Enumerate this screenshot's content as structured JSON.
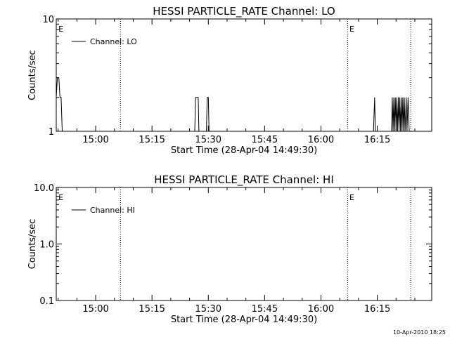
{
  "chart_data": [
    {
      "type": "line",
      "title": "HESSI PARTICLE_RATE Channel: LO",
      "xlabel": "Start Time (28-Apr-04 14:49:30)",
      "ylabel": "Counts/sec",
      "y_scale": "log",
      "ylim": [
        1,
        10
      ],
      "y_ticks": [
        1,
        10
      ],
      "y_tick_labels": [
        "1",
        "10"
      ],
      "x_unit": "minutes after 14:49:30",
      "xlim": [
        0,
        100
      ],
      "x_ticks": [
        10.5,
        25.5,
        40.5,
        55.5,
        70.5,
        85.5
      ],
      "x_tick_labels": [
        "15:00",
        "15:15",
        "15:30",
        "15:45",
        "16:00",
        "16:15"
      ],
      "legend": {
        "entries": [
          "Channel: LO"
        ],
        "placement": "top-left"
      },
      "grid": false,
      "vlines": [
        17.1,
        77.6,
        94.4
      ],
      "annotations": [
        {
          "text": "E",
          "x": 0.4
        },
        {
          "text": "E",
          "x": 77.9
        }
      ],
      "series": [
        {
          "name": "Channel: LO",
          "points": [
            [
              0,
              2
            ],
            [
              0.3,
              3
            ],
            [
              0.7,
              3
            ],
            [
              1.0,
              2
            ],
            [
              1.3,
              2
            ],
            [
              1.6,
              1
            ],
            [
              36.9,
              1
            ],
            [
              37.1,
              2
            ],
            [
              37.8,
              2
            ],
            [
              38.0,
              1
            ],
            [
              40.0,
              1
            ],
            [
              40.2,
              2
            ],
            [
              40.5,
              2
            ],
            [
              40.7,
              1
            ],
            [
              84.5,
              1
            ],
            [
              84.8,
              2
            ],
            [
              85.0,
              1
            ],
            [
              89.3,
              1
            ],
            [
              89.5,
              2
            ],
            [
              89.7,
              1
            ],
            [
              89.9,
              2
            ],
            [
              90.1,
              1
            ],
            [
              90.3,
              2
            ],
            [
              90.5,
              1
            ],
            [
              90.7,
              2
            ],
            [
              90.9,
              1
            ],
            [
              91.1,
              2
            ],
            [
              91.3,
              1
            ],
            [
              91.5,
              2
            ],
            [
              91.7,
              1
            ],
            [
              91.9,
              2
            ],
            [
              92.1,
              1
            ],
            [
              92.3,
              2
            ],
            [
              92.5,
              1
            ],
            [
              92.7,
              2
            ],
            [
              92.9,
              1
            ],
            [
              93.2,
              2
            ],
            [
              93.4,
              1
            ],
            [
              93.7,
              2
            ],
            [
              94.0,
              1
            ]
          ]
        }
      ]
    },
    {
      "type": "line",
      "title": "HESSI PARTICLE_RATE Channel: HI",
      "xlabel": "Start Time (28-Apr-04 14:49:30)",
      "ylabel": "Counts/sec",
      "y_scale": "log",
      "ylim": [
        0.1,
        10
      ],
      "y_ticks": [
        0.1,
        1,
        10
      ],
      "y_tick_labels": [
        "0.1",
        "1.0",
        "10.0"
      ],
      "x_unit": "minutes after 14:49:30",
      "xlim": [
        0,
        100
      ],
      "x_ticks": [
        10.5,
        25.5,
        40.5,
        55.5,
        70.5,
        85.5
      ],
      "x_tick_labels": [
        "15:00",
        "15:15",
        "15:30",
        "15:45",
        "16:00",
        "16:15"
      ],
      "legend": {
        "entries": [
          "Channel: HI"
        ],
        "placement": "top-left"
      },
      "grid": false,
      "vlines": [
        17.1,
        77.6,
        94.4
      ],
      "annotations": [
        {
          "text": "E",
          "x": 0.4
        },
        {
          "text": "E",
          "x": 77.9
        }
      ],
      "series": [
        {
          "name": "Channel: HI",
          "points": []
        }
      ]
    }
  ],
  "footer": {
    "timestamp": "10-Apr-2010 18:25"
  }
}
